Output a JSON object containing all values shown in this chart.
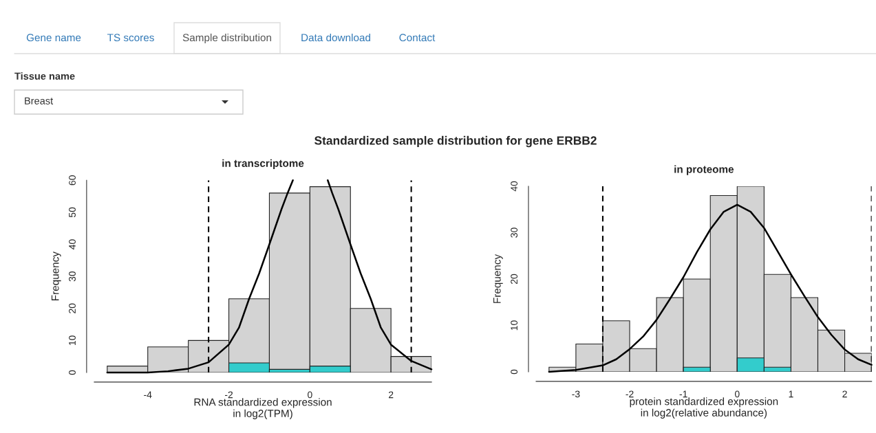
{
  "chart_data": [
    {
      "type": "other",
      "title": "Standardized sample distribution for gene ERBB2",
      "annotations": [
        "Gene name",
        "TS scores",
        "Sample distribution",
        "Data download",
        "Contact",
        "Tissue name",
        "Breast"
      ]
    },
    {
      "type": "histogram",
      "title": "in transcriptome",
      "xlabel": "RNA standardized expression\nin log2(TPM)",
      "ylabel": "Frequency",
      "bins": [
        -5,
        -4,
        -3,
        -2,
        -1,
        0,
        1,
        2,
        3
      ],
      "series": [
        {
          "color": "#d3d3d3",
          "values": [
            2,
            8,
            10,
            23,
            56,
            58,
            20,
            5
          ]
        },
        {
          "color": "#33cccc",
          "values": [
            0,
            0,
            0,
            3,
            1,
            2,
            0,
            0
          ]
        },
        {
          "type": "line",
          "color": "#000000",
          "x": [
            -5,
            -4.5,
            -4,
            -3.5,
            -3,
            -2.5,
            -2,
            -1.75,
            -1.5,
            -1.25,
            -1,
            -0.7,
            -0.55,
            -0.42,
            0,
            0.44,
            0.55,
            0.7,
            1,
            1.25,
            1.5,
            1.75,
            2,
            2.5,
            3
          ],
          "values": [
            0,
            0,
            0,
            0.4,
            1.2,
            3.2,
            8.7,
            14,
            23,
            31,
            40,
            51,
            56,
            60,
            null,
            60,
            56,
            51,
            40,
            31,
            23,
            14,
            8.7,
            3.6,
            1
          ]
        }
      ],
      "xlim": [
        -5.32,
        3
      ],
      "xticks": [
        -4,
        -2,
        0,
        2
      ],
      "ylim": [
        0,
        60
      ],
      "yticks": [
        0,
        10,
        20,
        30,
        40,
        50,
        60
      ],
      "ref_lines": [
        {
          "axis": "x",
          "value": -2.5,
          "color": "#000000",
          "line_style": "dashed"
        },
        {
          "axis": "x",
          "value": 2.5,
          "color": "#000000",
          "line_style": "dashed"
        }
      ]
    },
    {
      "type": "histogram",
      "title": "in proteome",
      "xlabel": "protein standardized expression\nin log2(relative abundance)",
      "ylabel": "Frequency",
      "bins": [
        -3.5,
        -3,
        -2.5,
        -2,
        -1.5,
        -1,
        -0.5,
        0,
        0.5,
        1,
        1.5,
        2,
        2.5
      ],
      "series": [
        {
          "color": "#d3d3d3",
          "values": [
            1,
            6,
            11,
            5,
            16,
            20,
            38,
            40,
            21,
            16,
            9,
            4
          ]
        },
        {
          "color": "#33cccc",
          "values": [
            0,
            0,
            0,
            0,
            0,
            1,
            0,
            3,
            1,
            0,
            0,
            0
          ]
        },
        {
          "type": "line",
          "color": "#000000",
          "x": [
            -3.5,
            -3,
            -2.5,
            -2.25,
            -2,
            -1.75,
            -1.5,
            -1.25,
            -1,
            -0.75,
            -0.5,
            -0.25,
            0,
            0.25,
            0.5,
            0.75,
            1,
            1.25,
            1.5,
            1.75,
            2,
            2.25,
            2.5
          ],
          "values": [
            0,
            0.4,
            1.4,
            2.7,
            4.9,
            7.6,
            11.2,
            15.7,
            20.4,
            25.8,
            30.7,
            34.5,
            36,
            34.5,
            31,
            26,
            21,
            16.3,
            11.8,
            8,
            4.8,
            2.7,
            1.5
          ]
        }
      ],
      "xlim": [
        -3.74,
        2.5
      ],
      "xticks": [
        -3,
        -2,
        -1,
        0,
        1,
        2
      ],
      "ylim": [
        0,
        40
      ],
      "yticks": [
        0,
        10,
        20,
        30,
        40
      ],
      "ref_lines": [
        {
          "axis": "x",
          "value": -2.5,
          "color": "#000000",
          "line_style": "dashed"
        },
        {
          "axis": "x",
          "value": 2.5,
          "color": "#000000",
          "line_style": "dashed"
        }
      ]
    }
  ]
}
